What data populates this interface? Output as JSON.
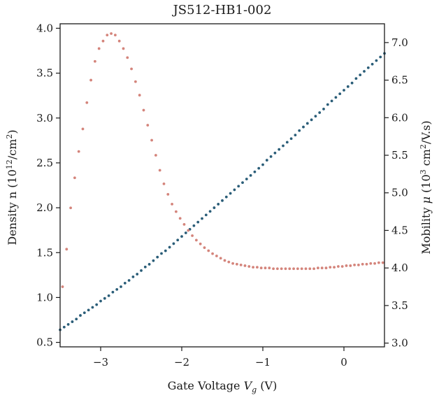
{
  "chart_data": {
    "type": "scatter",
    "title": "JS512-HB1-002",
    "xlabel": "Gate Voltage Vg (V)",
    "ylabel_left": "Density n (10^12/cm^2)",
    "ylabel_right": "Mobility μ (10^3 cm^2/V.s)",
    "xlim": [
      -3.5,
      0.5
    ],
    "ylim_left": [
      0.45,
      4.05
    ],
    "ylim_right": [
      2.95,
      7.25
    ],
    "x_ticks": [
      -3,
      -2,
      -1,
      0
    ],
    "x_tick_labels": [
      "−3",
      "−2",
      "−1",
      "0"
    ],
    "y_left_ticks": [
      0.5,
      1.0,
      1.5,
      2.0,
      2.5,
      3.0,
      3.5,
      4.0
    ],
    "y_left_tick_labels": [
      "0.5",
      "1.0",
      "1.5",
      "2.0",
      "2.5",
      "3.0",
      "3.5",
      "4.0"
    ],
    "y_right_ticks": [
      3.0,
      3.5,
      4.0,
      4.5,
      5.0,
      5.5,
      6.0,
      6.5,
      7.0
    ],
    "y_right_tick_labels": [
      "3.0",
      "3.5",
      "4.0",
      "4.5",
      "5.0",
      "5.5",
      "6.0",
      "6.5",
      "7.0"
    ],
    "grid": false,
    "colors": {
      "density": "#2a5d78",
      "mobility": "#d4847b",
      "axes": "#1a1a1a"
    },
    "series": [
      {
        "axis": "left",
        "x_start": -3.5,
        "x_step": 0.05,
        "values": [
          0.64,
          0.67,
          0.7,
          0.73,
          0.76,
          0.8,
          0.83,
          0.86,
          0.89,
          0.92,
          0.96,
          0.99,
          1.02,
          1.06,
          1.09,
          1.12,
          1.16,
          1.19,
          1.23,
          1.26,
          1.3,
          1.34,
          1.37,
          1.41,
          1.45,
          1.49,
          1.52,
          1.56,
          1.6,
          1.64,
          1.68,
          1.72,
          1.76,
          1.8,
          1.84,
          1.88,
          1.92,
          1.96,
          2.0,
          2.04,
          2.08,
          2.12,
          2.16,
          2.2,
          2.24,
          2.28,
          2.32,
          2.36,
          2.4,
          2.44,
          2.48,
          2.53,
          2.57,
          2.61,
          2.65,
          2.69,
          2.73,
          2.77,
          2.81,
          2.86,
          2.9,
          2.94,
          2.98,
          3.02,
          3.06,
          3.1,
          3.15,
          3.19,
          3.23,
          3.27,
          3.31,
          3.35,
          3.39,
          3.44,
          3.48,
          3.52,
          3.56,
          3.6,
          3.64,
          3.68,
          3.72
        ]
      },
      {
        "axis": "right",
        "x": [
          -3.47,
          -3.42,
          -3.37,
          -3.32,
          -3.27,
          -3.22,
          -3.17,
          -3.12,
          -3.07,
          -3.02,
          -2.97,
          -2.92,
          -2.87,
          -2.82,
          -2.77,
          -2.72,
          -2.67,
          -2.62,
          -2.57,
          -2.52,
          -2.47,
          -2.42,
          -2.37,
          -2.32,
          -2.27,
          -2.22,
          -2.17,
          -2.12,
          -2.07,
          -2.02,
          -1.97,
          -1.92,
          -1.87,
          -1.82,
          -1.77,
          -1.72,
          -1.67,
          -1.62,
          -1.57,
          -1.52,
          -1.47,
          -1.42,
          -1.37,
          -1.32,
          -1.27,
          -1.22,
          -1.17,
          -1.12,
          -1.07,
          -1.02,
          -0.97,
          -0.92,
          -0.87,
          -0.82,
          -0.77,
          -0.72,
          -0.67,
          -0.62,
          -0.57,
          -0.52,
          -0.47,
          -0.42,
          -0.37,
          -0.32,
          -0.27,
          -0.22,
          -0.17,
          -0.12,
          -0.07,
          -0.02,
          0.03,
          0.08,
          0.13,
          0.18,
          0.23,
          0.28,
          0.33,
          0.38,
          0.43,
          0.48
        ],
        "values": [
          3.75,
          4.25,
          4.8,
          5.2,
          5.55,
          5.85,
          6.2,
          6.5,
          6.75,
          6.92,
          7.02,
          7.1,
          7.12,
          7.1,
          7.02,
          6.92,
          6.8,
          6.65,
          6.48,
          6.3,
          6.1,
          5.9,
          5.7,
          5.5,
          5.3,
          5.12,
          4.98,
          4.85,
          4.75,
          4.66,
          4.58,
          4.5,
          4.43,
          4.37,
          4.32,
          4.27,
          4.23,
          4.19,
          4.16,
          4.13,
          4.1,
          4.08,
          4.06,
          4.05,
          4.04,
          4.03,
          4.02,
          4.01,
          4.01,
          4.0,
          4.0,
          4.0,
          3.99,
          3.99,
          3.99,
          3.99,
          3.99,
          3.99,
          3.99,
          3.99,
          3.99,
          3.99,
          3.99,
          4.0,
          4.0,
          4.0,
          4.01,
          4.01,
          4.02,
          4.02,
          4.03,
          4.03,
          4.04,
          4.04,
          4.05,
          4.05,
          4.06,
          4.06,
          4.07,
          4.07
        ]
      }
    ]
  }
}
